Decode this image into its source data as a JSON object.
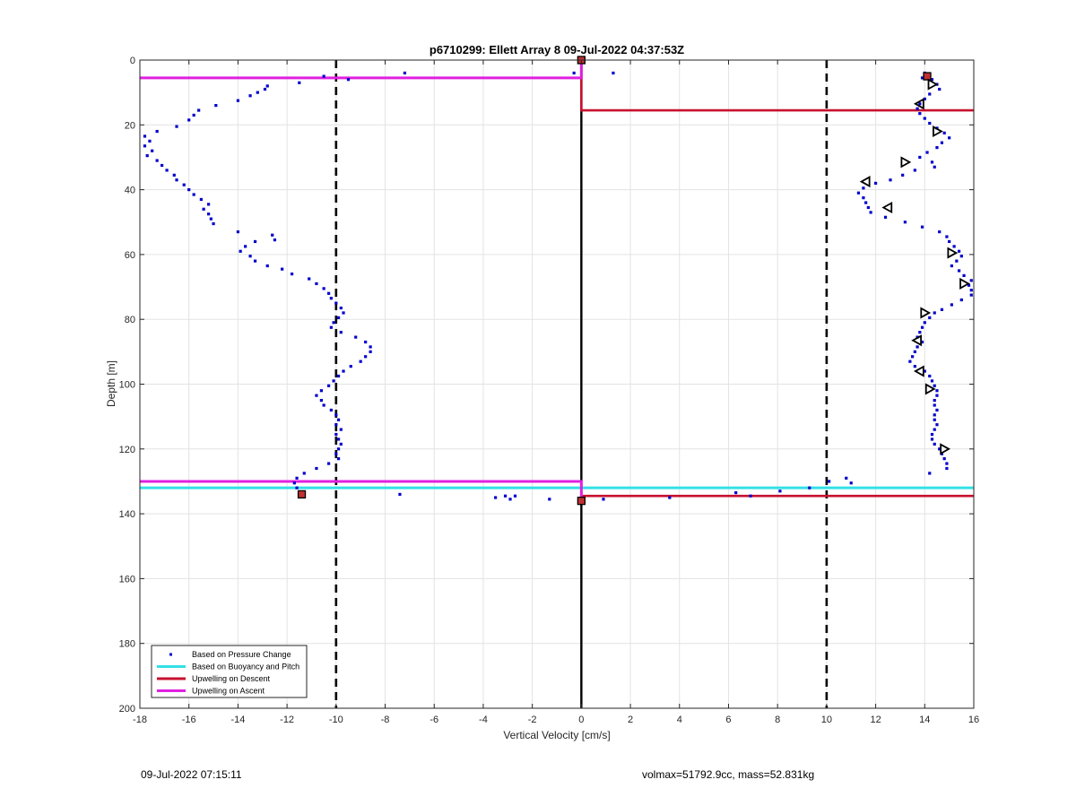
{
  "chart_data": {
    "type": "scatter",
    "title": "p6710299: Ellett Array 8 09-Jul-2022 04:37:53Z",
    "xlabel": "Vertical Velocity [cm/s]",
    "ylabel": "Depth [m]",
    "xlim": [
      -18,
      16
    ],
    "ylim": [
      0,
      200
    ],
    "y_reversed": true,
    "grid": true,
    "xticks": [
      -18,
      -16,
      -14,
      -12,
      -10,
      -8,
      -6,
      -4,
      -2,
      0,
      2,
      4,
      6,
      8,
      10,
      12,
      14,
      16
    ],
    "yticks": [
      0,
      20,
      40,
      60,
      80,
      100,
      120,
      140,
      160,
      180,
      200
    ],
    "legend_position": "bottom-left",
    "colors": {
      "pressure": "#0000cc",
      "buoyancy": "#33e0e6",
      "descent": "#c8102e",
      "ascent": "#e020e0",
      "reference": "#000000"
    },
    "legend": [
      "Based on Pressure Change",
      "Based on Buoyancy and Pitch",
      "Upwelling on Descent",
      "Upwelling on Ascent"
    ],
    "series": [
      {
        "name": "Based on Pressure Change",
        "style": "points",
        "points": [
          [
            -10.5,
            5
          ],
          [
            -11.5,
            7
          ],
          [
            -9.5,
            6
          ],
          [
            -7.2,
            4
          ],
          [
            -0.3,
            4
          ],
          [
            1.3,
            4
          ],
          [
            -12.8,
            8
          ],
          [
            -12.9,
            9
          ],
          [
            -13.2,
            10
          ],
          [
            -13.5,
            11
          ],
          [
            -14,
            12.5
          ],
          [
            -14.9,
            14
          ],
          [
            -15.6,
            15.5
          ],
          [
            -15.8,
            17
          ],
          [
            -16,
            18.5
          ],
          [
            -16.5,
            20.5
          ],
          [
            -17.3,
            22
          ],
          [
            -17.8,
            23.5
          ],
          [
            -17.6,
            25
          ],
          [
            -17.8,
            26.5
          ],
          [
            -17.5,
            28
          ],
          [
            -17.7,
            29.5
          ],
          [
            -17.3,
            31
          ],
          [
            -17.1,
            32.5
          ],
          [
            -16.9,
            34
          ],
          [
            -16.6,
            35.5
          ],
          [
            -16.5,
            37
          ],
          [
            -16.2,
            38.5
          ],
          [
            -16,
            40
          ],
          [
            -15.8,
            41.5
          ],
          [
            -15.5,
            43
          ],
          [
            -15.2,
            44.5
          ],
          [
            -15.4,
            46
          ],
          [
            -15.2,
            47.5
          ],
          [
            -15.1,
            49
          ],
          [
            -15,
            50.5
          ],
          [
            -14,
            53
          ],
          [
            -12.6,
            54
          ],
          [
            -12.5,
            55.5
          ],
          [
            -13.3,
            56
          ],
          [
            -13.7,
            57.5
          ],
          [
            -13.9,
            59
          ],
          [
            -13.5,
            60.5
          ],
          [
            -13.3,
            62
          ],
          [
            -12.8,
            63.5
          ],
          [
            -12.2,
            64.5
          ],
          [
            -11.8,
            66
          ],
          [
            -11.1,
            67.5
          ],
          [
            -10.8,
            69
          ],
          [
            -10.5,
            70.5
          ],
          [
            -10.3,
            72
          ],
          [
            -10.2,
            73.5
          ],
          [
            -10.0,
            75
          ],
          [
            -9.8,
            76.5
          ],
          [
            -9.7,
            78
          ],
          [
            -9.9,
            79.5
          ],
          [
            -10.1,
            81
          ],
          [
            -10.2,
            82.5
          ],
          [
            -9.8,
            84
          ],
          [
            -9.2,
            85.5
          ],
          [
            -8.8,
            87
          ],
          [
            -8.6,
            88.5
          ],
          [
            -8.6,
            90
          ],
          [
            -8.8,
            91.5
          ],
          [
            -9.0,
            93
          ],
          [
            -9.4,
            94.5
          ],
          [
            -9.7,
            96
          ],
          [
            -9.9,
            97.5
          ],
          [
            -10.1,
            99
          ],
          [
            -10.3,
            100.5
          ],
          [
            -10.6,
            102
          ],
          [
            -10.8,
            103.5
          ],
          [
            -10.6,
            105
          ],
          [
            -10.5,
            106.5
          ],
          [
            -10.2,
            108
          ],
          [
            -10.0,
            109.5
          ],
          [
            -9.9,
            111
          ],
          [
            -10.0,
            112.5
          ],
          [
            -9.8,
            114
          ],
          [
            -10.0,
            115.5
          ],
          [
            -9.9,
            117
          ],
          [
            -9.8,
            118.5
          ],
          [
            -9.9,
            120
          ],
          [
            -10.0,
            121.5
          ],
          [
            -9.9,
            123
          ],
          [
            -10.3,
            124.5
          ],
          [
            -10.8,
            126
          ],
          [
            -11.3,
            127.5
          ],
          [
            -11.6,
            129
          ],
          [
            -11.7,
            130.5
          ],
          [
            -11.6,
            132
          ],
          [
            -11.4,
            133.5
          ],
          [
            -7.4,
            134
          ],
          [
            -3.5,
            135
          ],
          [
            -3.1,
            134.5
          ],
          [
            -2.9,
            135.5
          ],
          [
            -2.7,
            134.5
          ],
          [
            -1.3,
            135.5
          ],
          [
            0.9,
            135.5
          ],
          [
            3.6,
            135
          ],
          [
            6.3,
            133.5
          ],
          [
            6.9,
            134.5
          ],
          [
            8.1,
            133
          ],
          [
            9.3,
            132
          ],
          [
            10.1,
            130
          ],
          [
            10.8,
            129
          ],
          [
            11.0,
            130.5
          ],
          [
            14.0,
            4
          ],
          [
            13.9,
            5.5
          ],
          [
            14.3,
            6
          ],
          [
            14.5,
            7.5
          ],
          [
            14.6,
            9
          ],
          [
            14.2,
            10.5
          ],
          [
            14.0,
            12
          ],
          [
            13.8,
            13.5
          ],
          [
            13.7,
            15
          ],
          [
            13.8,
            16.5
          ],
          [
            14.0,
            18
          ],
          [
            14.2,
            19.5
          ],
          [
            14.5,
            21
          ],
          [
            14.8,
            22.5
          ],
          [
            15.0,
            24
          ],
          [
            14.7,
            25.5
          ],
          [
            14.5,
            27
          ],
          [
            14.1,
            28.5
          ],
          [
            13.8,
            30
          ],
          [
            14.3,
            31.5
          ],
          [
            14.4,
            33
          ],
          [
            13.6,
            34
          ],
          [
            13.1,
            35.5
          ],
          [
            12.6,
            37
          ],
          [
            12.0,
            38
          ],
          [
            11.5,
            39.5
          ],
          [
            11.3,
            41
          ],
          [
            11.5,
            42.5
          ],
          [
            11.6,
            44
          ],
          [
            11.7,
            45.5
          ],
          [
            11.8,
            47
          ],
          [
            12.4,
            48.5
          ],
          [
            13.2,
            50
          ],
          [
            13.9,
            51.5
          ],
          [
            14.6,
            53
          ],
          [
            14.9,
            54.5
          ],
          [
            15.0,
            56
          ],
          [
            15.2,
            57.5
          ],
          [
            15.4,
            59
          ],
          [
            15.5,
            60.5
          ],
          [
            15.3,
            62
          ],
          [
            15.1,
            63.5
          ],
          [
            15.4,
            65
          ],
          [
            15.6,
            66.5
          ],
          [
            15.9,
            68
          ],
          [
            15.8,
            69.5
          ],
          [
            15.9,
            71
          ],
          [
            15.9,
            72.5
          ],
          [
            15.5,
            74
          ],
          [
            15.1,
            75.5
          ],
          [
            14.7,
            77
          ],
          [
            14.4,
            78
          ],
          [
            14.2,
            79.5
          ],
          [
            14.0,
            81
          ],
          [
            13.9,
            82.5
          ],
          [
            13.8,
            84
          ],
          [
            13.7,
            85.5
          ],
          [
            13.9,
            87
          ],
          [
            13.7,
            88.5
          ],
          [
            13.6,
            90
          ],
          [
            13.5,
            91.5
          ],
          [
            13.4,
            93
          ],
          [
            13.6,
            94.5
          ],
          [
            14.0,
            96
          ],
          [
            14.2,
            97.5
          ],
          [
            14.3,
            99
          ],
          [
            14.4,
            100.5
          ],
          [
            14.5,
            102
          ],
          [
            14.5,
            103.5
          ],
          [
            14.4,
            105
          ],
          [
            14.4,
            106.5
          ],
          [
            14.5,
            108
          ],
          [
            14.4,
            109.5
          ],
          [
            14.4,
            111
          ],
          [
            14.5,
            112.5
          ],
          [
            14.4,
            114
          ],
          [
            14.3,
            115.5
          ],
          [
            14.3,
            117
          ],
          [
            14.4,
            118.5
          ],
          [
            14.6,
            120
          ],
          [
            14.7,
            121.5
          ],
          [
            14.8,
            123
          ],
          [
            14.9,
            124.5
          ],
          [
            14.9,
            126
          ],
          [
            14.2,
            127.5
          ]
        ]
      },
      {
        "name": "Based on Buoyancy and Pitch",
        "style": "hline",
        "y": 132,
        "x": [
          -18,
          16
        ]
      },
      {
        "name": "Upwelling on Descent",
        "style": "step",
        "points": [
          [
            0,
            0
          ],
          [
            0,
            15.5
          ],
          [
            16,
            15.5
          ]
        ],
        "segment2": [
          [
            0,
            134.5
          ],
          [
            16,
            134.5
          ]
        ]
      },
      {
        "name": "Upwelling on Ascent",
        "style": "step",
        "points": [
          [
            -18,
            5.5
          ],
          [
            0,
            5.5
          ],
          [
            0,
            0
          ]
        ],
        "segment2": [
          [
            -18,
            130
          ],
          [
            0,
            130
          ],
          [
            0,
            136
          ]
        ]
      }
    ],
    "reference_lines": {
      "dashed_x": [
        -10,
        10
      ],
      "solid_x": 0
    },
    "markers": {
      "squares": [
        [
          0,
          0
        ],
        [
          14.1,
          5
        ],
        [
          -11.4,
          134
        ],
        [
          0,
          136
        ]
      ],
      "triangles_right": [
        [
          14.3,
          7.5
        ],
        [
          14.5,
          22
        ],
        [
          13.2,
          31.5
        ],
        [
          15.1,
          59.5
        ],
        [
          15.6,
          69
        ],
        [
          14.0,
          78
        ],
        [
          14.2,
          101.5
        ],
        [
          14.8,
          120
        ]
      ],
      "triangles_left": [
        [
          13.8,
          13.5
        ],
        [
          11.6,
          37.5
        ],
        [
          12.5,
          45.5
        ],
        [
          13.7,
          86.5
        ],
        [
          13.8,
          96
        ]
      ]
    }
  },
  "footer": {
    "timestamp": "09-Jul-2022 07:15:11",
    "summary": "volmax=51792.9cc, mass=52.831kg"
  }
}
